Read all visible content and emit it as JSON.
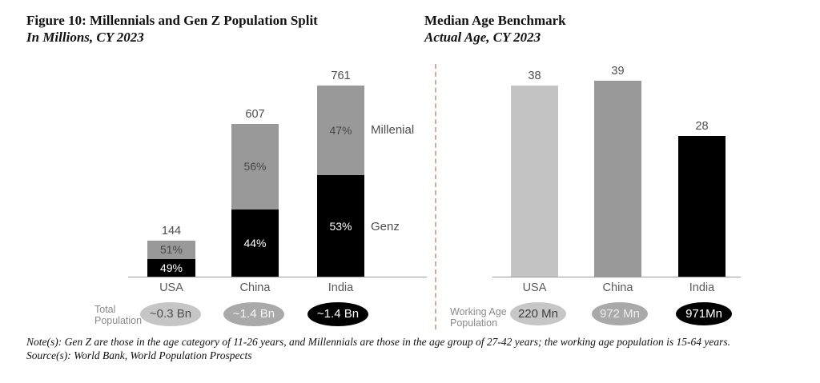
{
  "chart_data": [
    {
      "type": "bar",
      "stacked": true,
      "title": "Figure 10: Millennials and Gen Z Population Split",
      "subtitle": "In Millions, CY 2023",
      "categories": [
        "USA",
        "China",
        "India"
      ],
      "totals": [
        144,
        607,
        761
      ],
      "ylim": [
        0,
        800
      ],
      "grid": false,
      "series": [
        {
          "name": "Genz",
          "pct": [
            49,
            44,
            53
          ],
          "color": "#000000",
          "label_color": "#ffffff"
        },
        {
          "name": "Millenial",
          "pct": [
            51,
            56,
            47
          ],
          "color": "#999999",
          "label_color": "#474747"
        }
      ],
      "value_label_color": "#4d4d4d",
      "footer": {
        "label": "Total Population",
        "badges": [
          {
            "text": "~0.3 Bn",
            "bg": "#c6c6c6",
            "fg": "#4d4d4d"
          },
          {
            "text": "~1.4 Bn",
            "bg": "#a9a9a9",
            "fg": "#f5f5f5"
          },
          {
            "text": "~1.4 Bn",
            "bg": "#000000",
            "fg": "#ffffff"
          }
        ]
      }
    },
    {
      "type": "bar",
      "stacked": false,
      "title": "Median Age Benchmark",
      "subtitle": "Actual Age, CY 2023",
      "categories": [
        "USA",
        "China",
        "India"
      ],
      "values": [
        38,
        39,
        28
      ],
      "ylim": [
        0,
        41
      ],
      "grid": false,
      "bar_colors": [
        "#c4c4c4",
        "#999999",
        "#000000"
      ],
      "value_label_color": "#4d4d4d",
      "footer": {
        "label": "Working Age Population",
        "badges": [
          {
            "text": "220 Mn",
            "bg": "#c6c6c6",
            "fg": "#3d3d3d"
          },
          {
            "text": "972 Mn",
            "bg": "#a9a9a9",
            "fg": "#ededed"
          },
          {
            "text": "971Mn",
            "bg": "#000000",
            "fg": "#ffffff"
          }
        ]
      }
    }
  ],
  "notes": {
    "note": "Note(s): Gen Z are those in the age category of 11-26 years, and Millennials are those in the age group of 27-42 years; the working age population is 15-64 years.",
    "source": "Source(s): World Bank, World Population Prospects"
  },
  "style": {
    "divider_color": "#d6a99e",
    "axis_color": "#999999"
  }
}
